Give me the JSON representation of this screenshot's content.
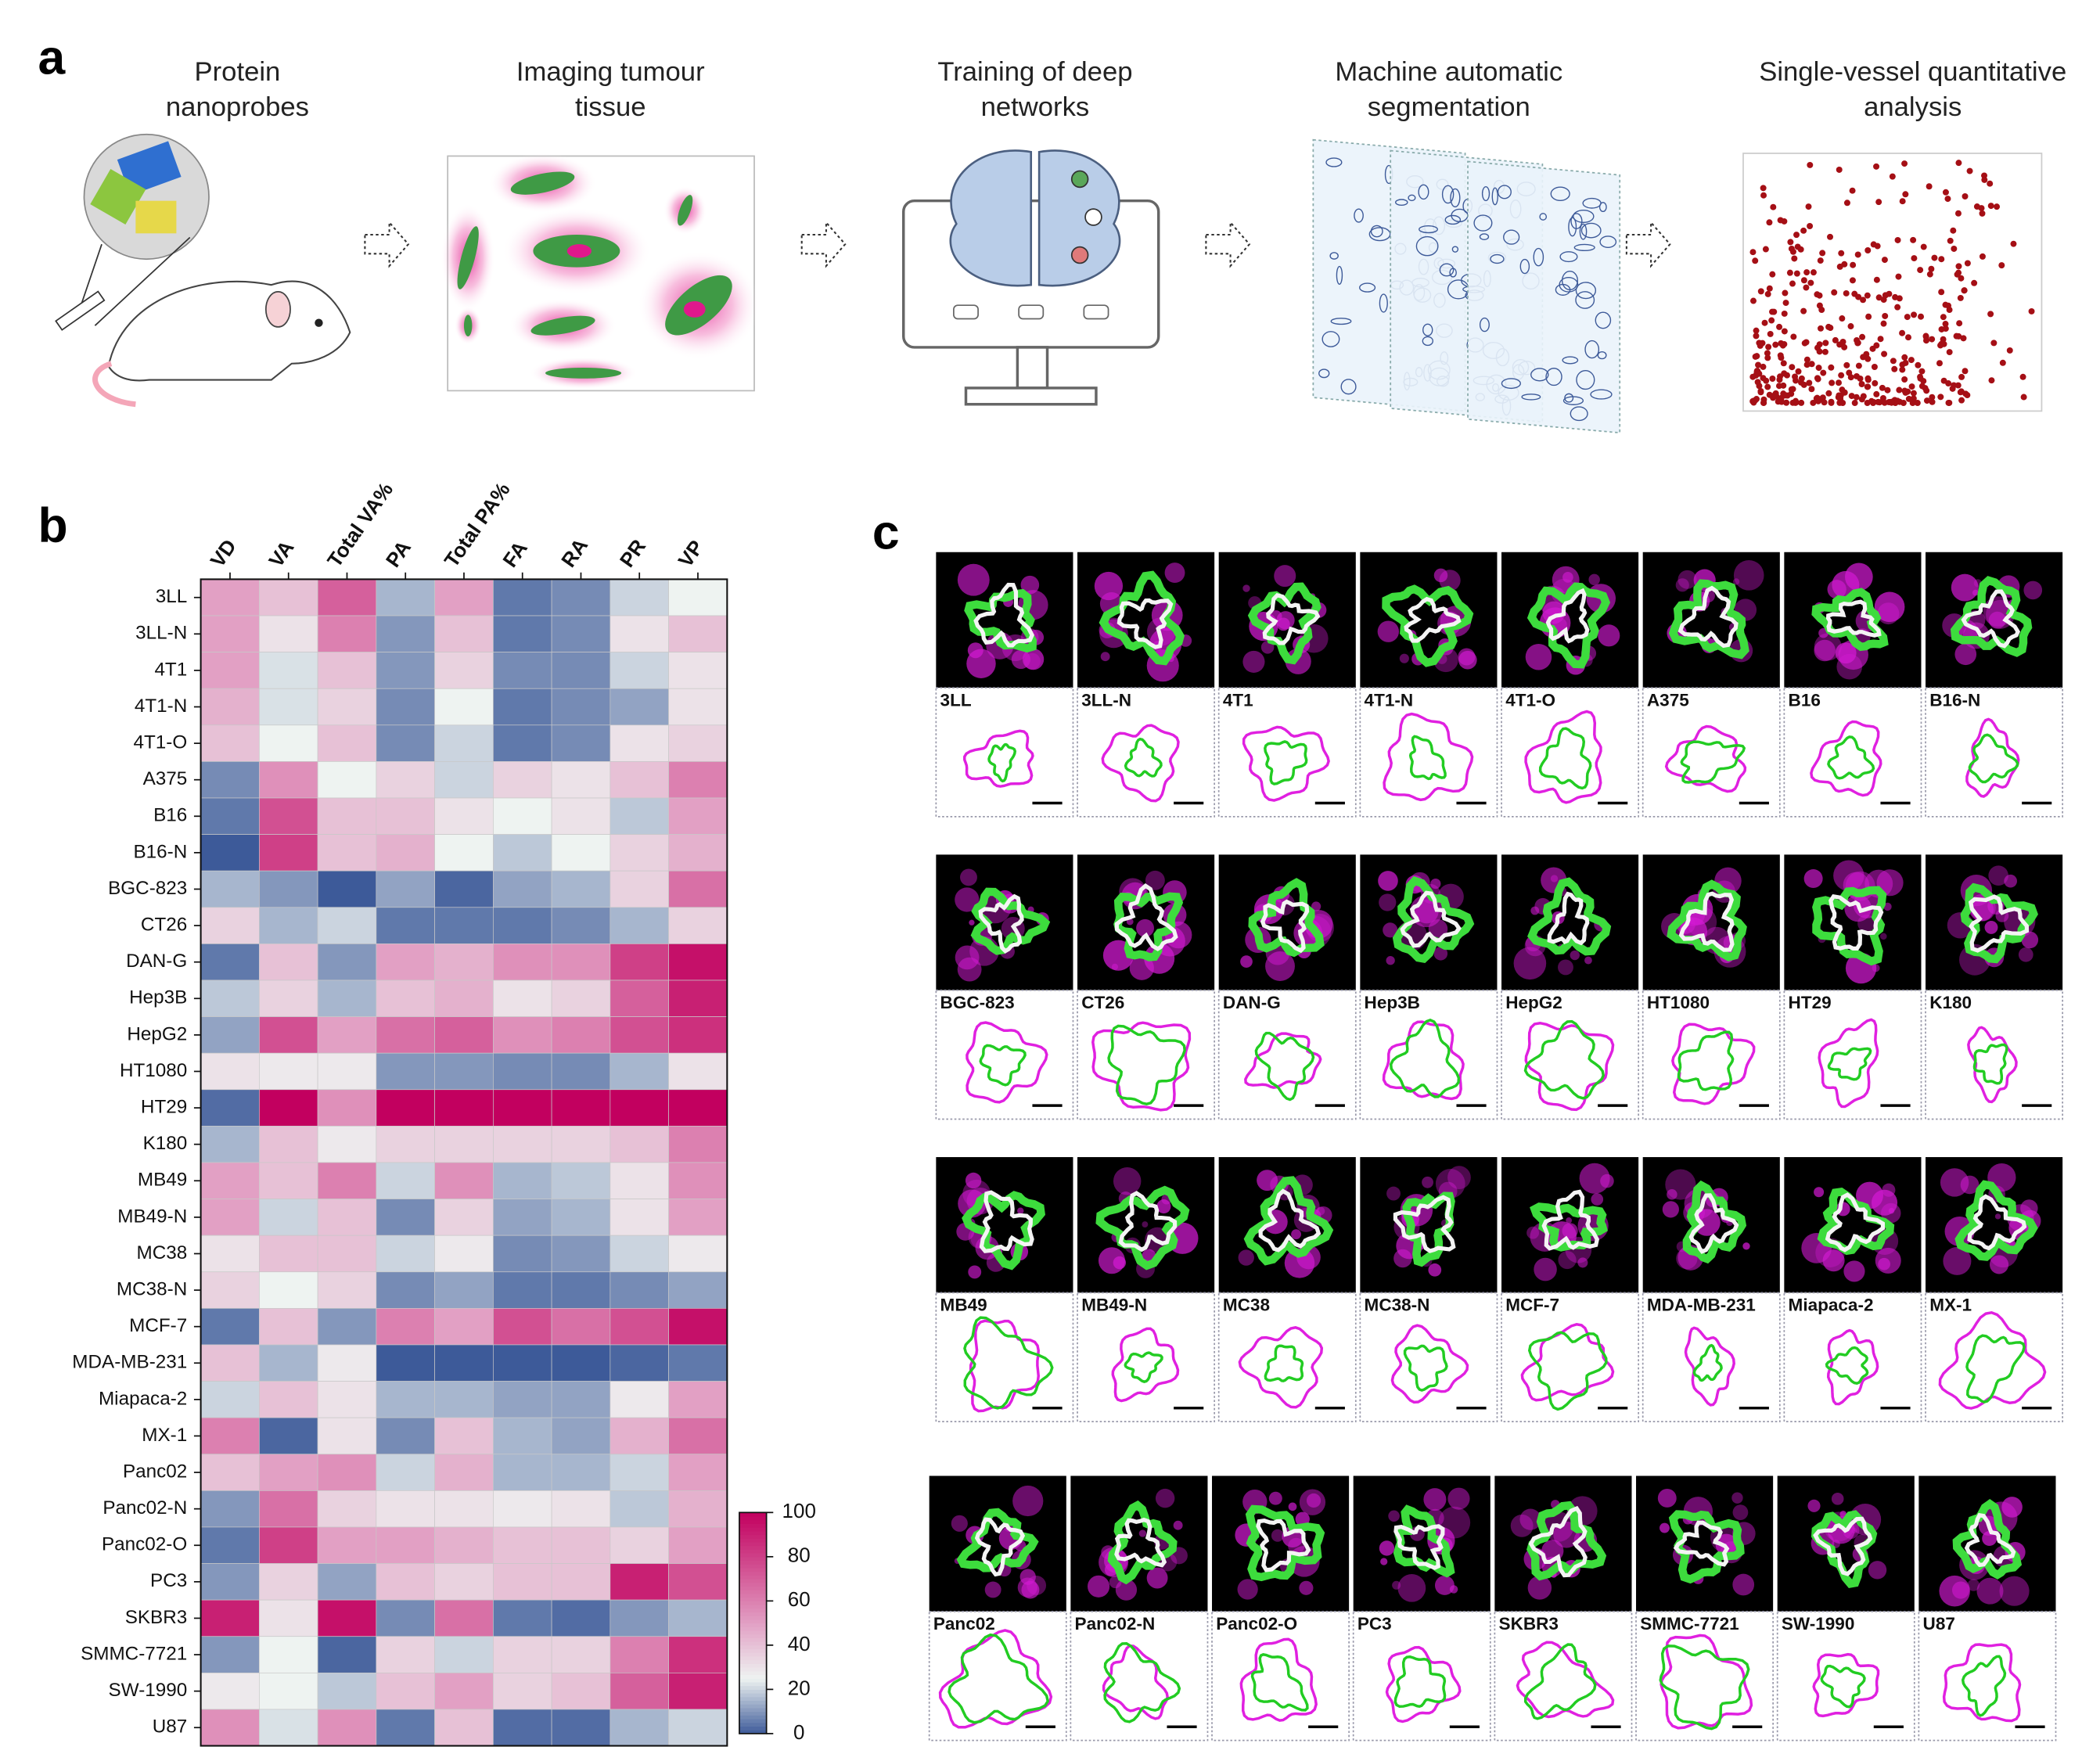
{
  "panel_a": {
    "label": "a",
    "steps": [
      [
        "Protein",
        "nanoprobes"
      ],
      [
        "Imaging tumour",
        "tissue"
      ],
      [
        "Training of deep",
        "networks"
      ],
      [
        "Machine automatic",
        "segmentation"
      ],
      [
        "Single-vessel quantitative",
        "analysis"
      ]
    ]
  },
  "chart_data": {
    "type": "heatmap",
    "panel_label": "b",
    "columns": [
      "VD",
      "VA",
      "Total VA%",
      "PA",
      "Total PA%",
      "FA",
      "RA",
      "PR",
      "VP"
    ],
    "rows": [
      "3LL",
      "3LL-N",
      "4T1",
      "4T1-N",
      "4T1-O",
      "A375",
      "B16",
      "B16-N",
      "BGC-823",
      "CT26",
      "DAN-G",
      "Hep3B",
      "HepG2",
      "HT1080",
      "HT29",
      "K180",
      "MB49",
      "MB49-N",
      "MC38",
      "MC38-N",
      "MCF-7",
      "MDA-MB-231",
      "Miapaca-2",
      "MX-1",
      "Panc02",
      "Panc02-N",
      "Panc02-O",
      "PC3",
      "SKBR3",
      "SMMC-7721",
      "SW-1990",
      "U87"
    ],
    "values": [
      [
        50,
        40,
        70,
        15,
        50,
        5,
        8,
        20,
        25
      ],
      [
        50,
        30,
        60,
        10,
        40,
        5,
        8,
        30,
        40
      ],
      [
        50,
        22,
        40,
        10,
        35,
        8,
        8,
        20,
        30
      ],
      [
        45,
        22,
        35,
        8,
        25,
        5,
        8,
        12,
        30
      ],
      [
        40,
        25,
        40,
        8,
        20,
        5,
        8,
        30,
        35
      ],
      [
        8,
        55,
        25,
        35,
        20,
        35,
        30,
        40,
        60
      ],
      [
        5,
        75,
        40,
        40,
        30,
        25,
        30,
        18,
        50
      ],
      [
        0,
        80,
        40,
        45,
        25,
        18,
        25,
        35,
        45
      ],
      [
        15,
        10,
        0,
        12,
        2,
        12,
        15,
        35,
        65
      ],
      [
        35,
        15,
        20,
        5,
        5,
        5,
        8,
        15,
        35
      ],
      [
        5,
        40,
        10,
        50,
        45,
        55,
        55,
        80,
        95
      ],
      [
        18,
        35,
        15,
        40,
        45,
        30,
        35,
        70,
        90
      ],
      [
        12,
        75,
        50,
        65,
        70,
        55,
        60,
        75,
        85
      ],
      [
        30,
        28,
        28,
        10,
        10,
        8,
        8,
        15,
        30
      ],
      [
        3,
        100,
        55,
        100,
        100,
        100,
        100,
        100,
        100
      ],
      [
        15,
        40,
        28,
        35,
        35,
        35,
        35,
        40,
        60
      ],
      [
        50,
        40,
        60,
        20,
        55,
        15,
        18,
        30,
        55
      ],
      [
        50,
        20,
        40,
        8,
        35,
        12,
        15,
        30,
        50
      ],
      [
        30,
        40,
        40,
        20,
        28,
        8,
        10,
        20,
        28
      ],
      [
        35,
        25,
        35,
        8,
        12,
        5,
        5,
        8,
        12
      ],
      [
        5,
        40,
        10,
        60,
        50,
        75,
        65,
        75,
        95
      ],
      [
        40,
        15,
        28,
        0,
        0,
        0,
        0,
        2,
        5
      ],
      [
        20,
        40,
        30,
        15,
        15,
        12,
        12,
        28,
        50
      ],
      [
        60,
        2,
        30,
        8,
        40,
        15,
        12,
        45,
        65
      ],
      [
        40,
        50,
        55,
        20,
        45,
        15,
        15,
        20,
        50
      ],
      [
        10,
        65,
        35,
        30,
        30,
        28,
        30,
        18,
        45
      ],
      [
        5,
        80,
        50,
        50,
        45,
        40,
        40,
        35,
        50
      ],
      [
        10,
        35,
        12,
        40,
        35,
        40,
        40,
        90,
        75
      ],
      [
        90,
        30,
        95,
        8,
        65,
        5,
        3,
        10,
        15
      ],
      [
        10,
        25,
        2,
        35,
        20,
        35,
        35,
        60,
        85
      ],
      [
        28,
        25,
        18,
        40,
        50,
        35,
        40,
        70,
        90
      ],
      [
        55,
        22,
        55,
        5,
        40,
        3,
        3,
        15,
        20
      ]
    ],
    "colorbar": {
      "ylim": [
        0,
        100
      ],
      "yticks": [
        0,
        20,
        40,
        60,
        80,
        100
      ],
      "colors": [
        "#3d5a99",
        "#eef3f1",
        "#e2a0c4",
        "#c2005f"
      ]
    }
  },
  "panel_c": {
    "label": "c",
    "samples": [
      "3LL",
      "3LL-N",
      "4T1",
      "4T1-N",
      "4T1-O",
      "A375",
      "B16",
      "B16-N",
      "BGC-823",
      "CT26",
      "DAN-G",
      "Hep3B",
      "HepG2",
      "HT1080",
      "HT29",
      "K180",
      "MB49",
      "MB49-N",
      "MC38",
      "MC38-N",
      "MCF-7",
      "MDA-MB-231",
      "Miapaca-2",
      "MX-1",
      "Panc02",
      "Panc02-N",
      "Panc02-O",
      "PC3",
      "SKBR3",
      "SMMC-7721",
      "SW-1990",
      "U87"
    ]
  }
}
